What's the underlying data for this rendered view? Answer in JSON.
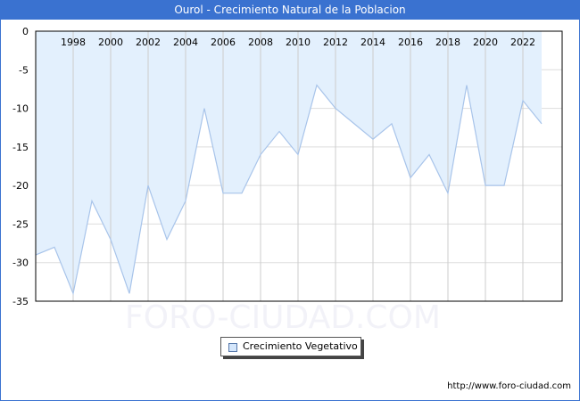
{
  "header": {
    "title": "Ourol - Crecimiento Natural de la Poblacion"
  },
  "legend": {
    "label": "Crecimiento Vegetativo"
  },
  "footer": {
    "url": "http://www.foro-ciudad.com"
  },
  "watermark": "FORO-CIUDAD.COM",
  "colors": {
    "title_bg": "#3a72d0",
    "fill": "#e3f0fd",
    "line": "#a8c4ea",
    "grid": "#dddddd",
    "vgrid": "#cccccc"
  },
  "chart_data": {
    "type": "area",
    "title": "Ourol - Crecimiento Natural de la Poblacion",
    "xlabel": "",
    "ylabel": "",
    "x": [
      1996,
      1997,
      1998,
      1999,
      2000,
      2001,
      2002,
      2003,
      2004,
      2005,
      2006,
      2007,
      2008,
      2009,
      2010,
      2011,
      2012,
      2013,
      2014,
      2015,
      2016,
      2017,
      2018,
      2019,
      2020,
      2021,
      2022,
      2023
    ],
    "series": [
      {
        "name": "Crecimiento Vegetativo",
        "values": [
          -29,
          -28,
          -34,
          -22,
          -27,
          -34,
          -20,
          -27,
          -22,
          -10,
          -21,
          -21,
          -16,
          -13,
          -16,
          -7,
          -10,
          -12,
          -14,
          -12,
          -19,
          -16,
          -21,
          -7,
          -20,
          -20,
          -9,
          -12
        ]
      }
    ],
    "x_tick_labels": [
      "1998",
      "2000",
      "2002",
      "2004",
      "2006",
      "2008",
      "2010",
      "2012",
      "2014",
      "2016",
      "2018",
      "2020",
      "2022"
    ],
    "y_tick_labels": [
      "0",
      "-5",
      "-10",
      "-15",
      "-20",
      "-25",
      "-30",
      "-35"
    ],
    "ylim": [
      -35,
      0
    ],
    "grid": true,
    "legend_position": "bottom"
  }
}
